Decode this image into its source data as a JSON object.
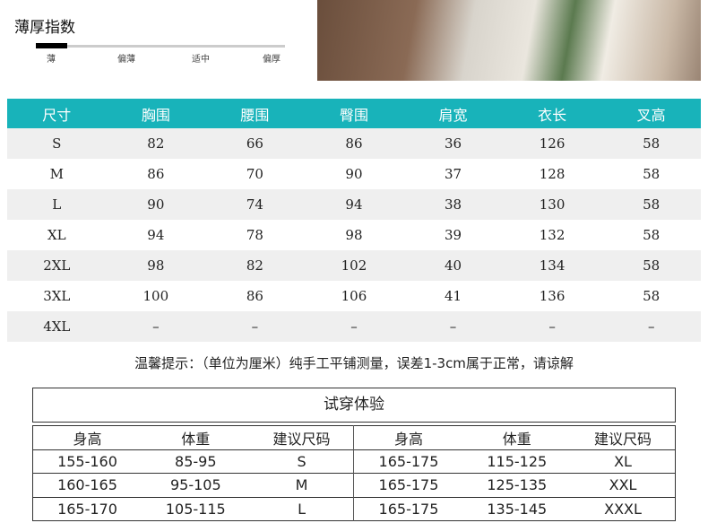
{
  "thickness": {
    "title": "薄厚指数",
    "levels": [
      "薄",
      "偏薄",
      "适中",
      "偏厚"
    ],
    "selected_level": 0,
    "fill_fraction": 0.125
  },
  "size_table": {
    "header_color": "#18b3ba",
    "headers": [
      "尺寸",
      "胸围",
      "腰围",
      "臀围",
      "肩宽",
      "衣长",
      "叉高"
    ],
    "rows": [
      [
        "S",
        "82",
        "66",
        "86",
        "36",
        "126",
        "58"
      ],
      [
        "M",
        "86",
        "70",
        "90",
        "37",
        "128",
        "58"
      ],
      [
        "L",
        "90",
        "74",
        "94",
        "38",
        "130",
        "58"
      ],
      [
        "XL",
        "94",
        "78",
        "98",
        "39",
        "132",
        "58"
      ],
      [
        "2XL",
        "98",
        "82",
        "102",
        "40",
        "134",
        "58"
      ],
      [
        "3XL",
        "100",
        "86",
        "106",
        "41",
        "136",
        "58"
      ],
      [
        "4XL",
        "–",
        "–",
        "–",
        "–",
        "–",
        "–"
      ]
    ]
  },
  "note": "温馨提示：（单位为厘米）纯手工平铺测量，误差1-3cm属于正常，请谅解",
  "trial": {
    "title": "试穿体验",
    "headers": [
      "身高",
      "体重",
      "建议尺码",
      "身高",
      "体重",
      "建议尺码"
    ],
    "rows": [
      [
        "155-160",
        "85-95",
        "S",
        "165-175",
        "115-125",
        "XL"
      ],
      [
        "160-165",
        "95-105",
        "M",
        "165-175",
        "125-135",
        "XXL"
      ],
      [
        "165-170",
        "105-115",
        "L",
        "165-175",
        "135-145",
        "XXXL"
      ]
    ]
  }
}
